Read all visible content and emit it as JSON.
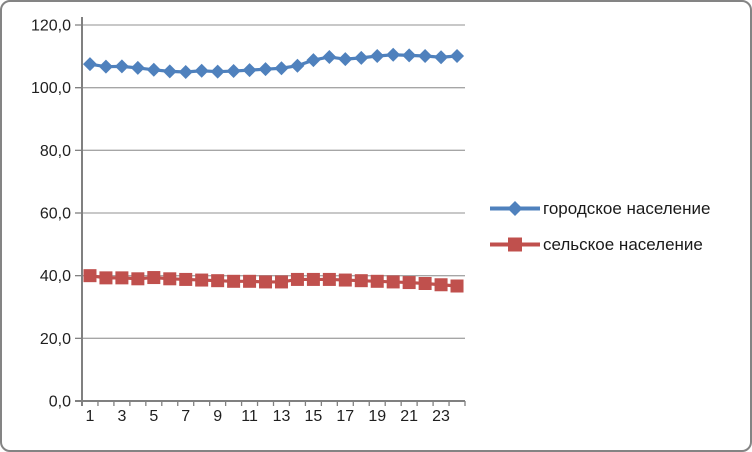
{
  "chart_data": {
    "type": "line",
    "title": "",
    "xlabel": "",
    "ylabel": "",
    "categories": [
      1,
      2,
      3,
      4,
      5,
      6,
      7,
      8,
      9,
      10,
      11,
      12,
      13,
      14,
      15,
      16,
      17,
      18,
      19,
      20,
      21,
      22,
      23,
      24
    ],
    "x_tick_labels_shown": [
      "1",
      "3",
      "5",
      "7",
      "9",
      "11",
      "13",
      "15",
      "17",
      "19",
      "21",
      "23"
    ],
    "ylim": [
      0,
      120
    ],
    "y_ticks": {
      "values": [
        0,
        20,
        40,
        60,
        80,
        100,
        120
      ],
      "labels": [
        "0,0",
        "20,0",
        "40,0",
        "60,0",
        "80,0",
        "100,0",
        "120,0"
      ]
    },
    "grid": true,
    "legend_position": "right",
    "series": [
      {
        "name": "городское население",
        "color": "#4F81BD",
        "marker": "diamond",
        "values": [
          107.5,
          106.7,
          106.8,
          106.3,
          105.7,
          105.2,
          105.0,
          105.4,
          105.1,
          105.3,
          105.6,
          105.9,
          106.2,
          107.0,
          108.8,
          109.8,
          109.1,
          109.5,
          110.1,
          110.5,
          110.3,
          110.1,
          109.7,
          110.1
        ]
      },
      {
        "name": "сельское население",
        "color": "#C0504D",
        "marker": "square",
        "values": [
          40.0,
          39.3,
          39.3,
          39.0,
          39.4,
          39.0,
          38.8,
          38.6,
          38.4,
          38.2,
          38.2,
          38.0,
          38.0,
          38.8,
          38.8,
          38.8,
          38.6,
          38.4,
          38.2,
          38.0,
          37.8,
          37.5,
          37.1,
          36.7
        ]
      }
    ],
    "colors": {
      "gridline": "#A6A6A6",
      "axis": "#808080",
      "text": "#1F1F1F",
      "frame_border": "#848484"
    }
  }
}
